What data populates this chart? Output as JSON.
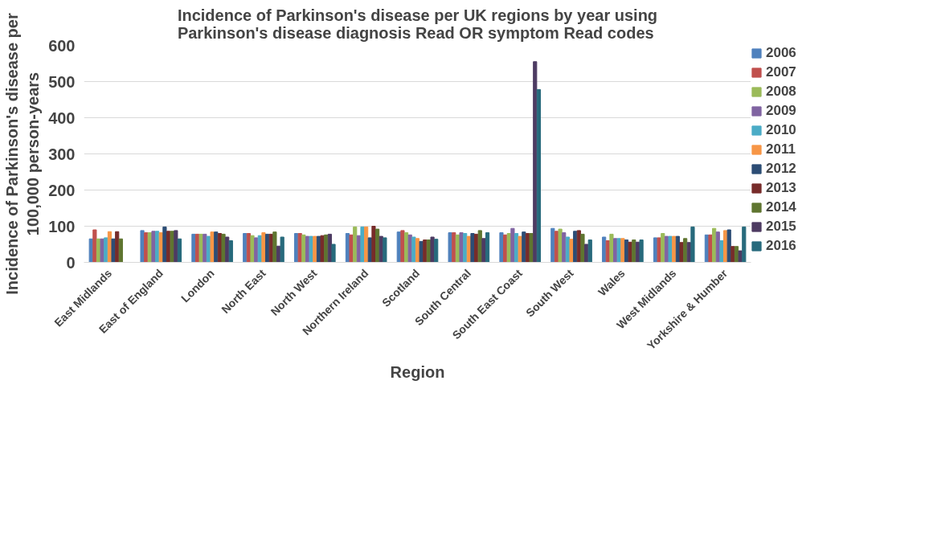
{
  "chart_data": {
    "type": "bar",
    "title": "Incidence of Parkinson's disease per UK regions by year using Parkinson's disease diagnosis Read OR symptom Read codes",
    "xlabel": "Region",
    "ylabel": "Incidence of Parkinson's disease per 100,000 person-years",
    "categories": [
      "East Midlands",
      "East of England",
      "London",
      "North East",
      "North West",
      "Northern Ireland",
      "Scotland",
      "South Central",
      "South East Coast",
      "South West",
      "Wales",
      "West Midlands",
      "Yorkshire & Humber"
    ],
    "ylim": [
      0,
      600
    ],
    "yticks": [
      0,
      100,
      200,
      300,
      400,
      500,
      600
    ],
    "grid": "y",
    "legend": "right",
    "series": [
      {
        "name": "2006",
        "color": "#4f81bd",
        "values": [
          65,
          88,
          78,
          80,
          80,
          80,
          84,
          82,
          82,
          94,
          70,
          68,
          76
        ]
      },
      {
        "name": "2007",
        "color": "#c0504d",
        "values": [
          90,
          82,
          78,
          80,
          80,
          76,
          88,
          82,
          76,
          86,
          60,
          68,
          76
        ]
      },
      {
        "name": "2008",
        "color": "#9bbb59",
        "values": [
          65,
          82,
          78,
          74,
          76,
          98,
          82,
          76,
          80,
          92,
          78,
          80,
          94
        ]
      },
      {
        "name": "2009",
        "color": "#8064a2",
        "values": [
          65,
          86,
          78,
          68,
          72,
          74,
          76,
          82,
          94,
          82,
          66,
          72,
          84
        ]
      },
      {
        "name": "2010",
        "color": "#4bacc6",
        "values": [
          68,
          86,
          72,
          74,
          72,
          98,
          70,
          80,
          80,
          70,
          66,
          72,
          60
        ]
      },
      {
        "name": "2011",
        "color": "#f79646",
        "values": [
          85,
          82,
          84,
          82,
          72,
          98,
          66,
          72,
          72,
          64,
          66,
          72,
          88
        ]
      },
      {
        "name": "2012",
        "color": "#2c4d75",
        "values": [
          65,
          98,
          84,
          78,
          72,
          68,
          58,
          80,
          84,
          86,
          62,
          72,
          90
        ]
      },
      {
        "name": "2013",
        "color": "#772c2a",
        "values": [
          85,
          86,
          80,
          78,
          74,
          100,
          62,
          78,
          80,
          88,
          56,
          55,
          44
        ]
      },
      {
        "name": "2014",
        "color": "#5f7530",
        "values": [
          65,
          86,
          78,
          84,
          76,
          92,
          62,
          88,
          80,
          78,
          62,
          66,
          44
        ]
      },
      {
        "name": "2015",
        "color": "#4d3b62",
        "values": [
          null,
          88,
          70,
          45,
          78,
          72,
          70,
          66,
          555,
          50,
          56,
          55,
          32
        ]
      },
      {
        "name": "2016",
        "color": "#276a7c",
        "values": [
          null,
          65,
          60,
          70,
          50,
          68,
          64,
          82,
          478,
          62,
          62,
          98,
          98
        ]
      }
    ]
  }
}
